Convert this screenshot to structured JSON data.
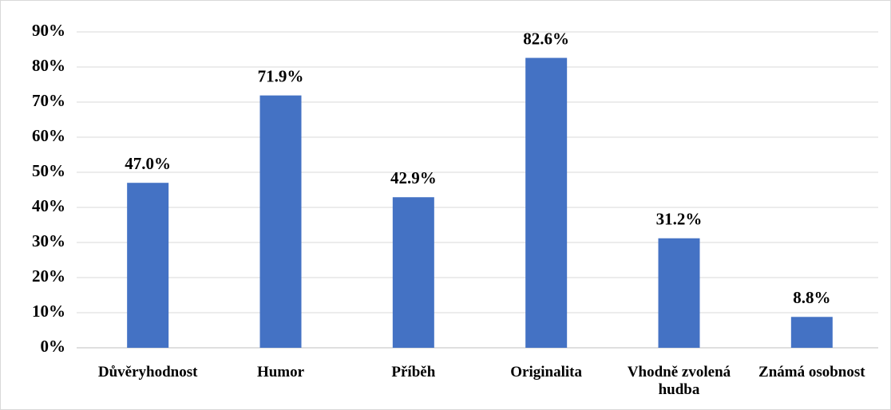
{
  "chart_data": {
    "type": "bar",
    "categories": [
      "Důvěryhodnost",
      "Humor",
      "Příběh",
      "Originalita",
      "Vhodně zvolená hudba",
      "Známá osobnost"
    ],
    "values": [
      47.0,
      71.9,
      42.9,
      82.6,
      31.2,
      8.8
    ],
    "value_labels": [
      "47.0%",
      "71.9%",
      "42.9%",
      "82.6%",
      "31.2%",
      "8.8%"
    ],
    "color": "#4472c4",
    "ylim": [
      0,
      90
    ],
    "yticks": [
      {
        "value": 0,
        "label": "0%"
      },
      {
        "value": 10,
        "label": "10%"
      },
      {
        "value": 20,
        "label": "20%"
      },
      {
        "value": 30,
        "label": "30%"
      },
      {
        "value": 40,
        "label": "40%"
      },
      {
        "value": 50,
        "label": "50%"
      },
      {
        "value": 60,
        "label": "60%"
      },
      {
        "value": 70,
        "label": "70%"
      },
      {
        "value": 80,
        "label": "80%"
      },
      {
        "value": 90,
        "label": "90%"
      }
    ],
    "grid": true
  }
}
